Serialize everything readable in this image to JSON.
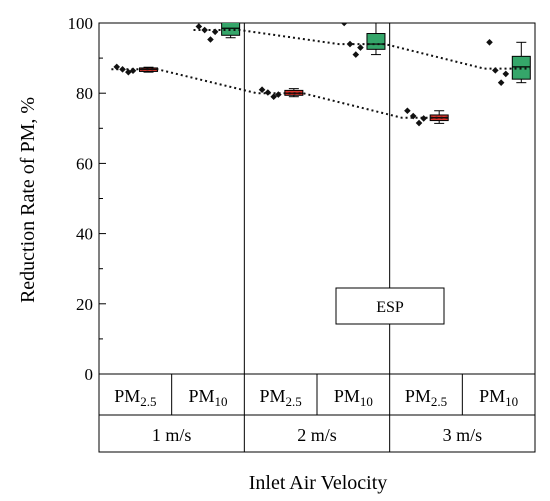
{
  "chart_data": {
    "type": "box",
    "ylabel": "Reduction Rate of PM, %",
    "xlabel": "Inlet Air Velocity",
    "ylim": [
      0,
      100
    ],
    "yticks": [
      0,
      20,
      40,
      60,
      80,
      100
    ],
    "groups": [
      {
        "velocity": "1 m/s",
        "pm": [
          "PM2.5",
          "PM10"
        ]
      },
      {
        "velocity": "2 m/s",
        "pm": [
          "PM2.5",
          "PM10"
        ]
      },
      {
        "velocity": "3 m/s",
        "pm": [
          "PM2.5",
          "PM10"
        ]
      }
    ],
    "pm_labels": [
      {
        "base": "PM",
        "sub": "2.5"
      },
      {
        "base": "PM",
        "sub": "10"
      }
    ],
    "legend_label": "ESP",
    "series": [
      {
        "pollutant": "PM2.5",
        "color": "#d9342b",
        "boxes": [
          {
            "velocity": "1 m/s",
            "q1": 86.2,
            "median": 86.8,
            "q3": 87.2,
            "whisker_low": 86.0,
            "whisker_high": 87.4,
            "points": [
              87.5,
              86.8,
              86.0,
              86.4
            ],
            "mean": 86.8
          },
          {
            "velocity": "2 m/s",
            "q1": 79.4,
            "median": 80.0,
            "q3": 80.8,
            "whisker_low": 79.0,
            "whisker_high": 81.3,
            "points": [
              81.0,
              80.2,
              79.0,
              79.6
            ],
            "mean": 80.0
          },
          {
            "velocity": "3 m/s",
            "q1": 72.2,
            "median": 73.0,
            "q3": 73.8,
            "whisker_low": 71.4,
            "whisker_high": 75.0,
            "points": [
              75.0,
              73.5,
              71.5,
              72.8
            ],
            "mean": 73.0
          }
        ]
      },
      {
        "pollutant": "PM10",
        "color": "#35a66a",
        "boxes": [
          {
            "velocity": "1 m/s",
            "q1": 96.5,
            "median": 98.5,
            "q3": 101.0,
            "whisker_low": 95.8,
            "whisker_high": 101.0,
            "points": [
              99.0,
              98.0,
              95.3,
              97.5
            ],
            "mean": 98.0
          },
          {
            "velocity": "2 m/s",
            "q1": 92.5,
            "median": 94.0,
            "q3": 97.0,
            "whisker_low": 91.0,
            "whisker_high": 101.0,
            "points": [
              100.0,
              94.0,
              91.0,
              93.0
            ],
            "mean": 94.0
          },
          {
            "velocity": "3 m/s",
            "q1": 84.0,
            "median": 87.5,
            "q3": 90.5,
            "whisker_low": 83.0,
            "whisker_high": 94.5,
            "points": [
              94.5,
              86.5,
              83.0,
              85.5
            ],
            "mean": 87.0
          }
        ]
      }
    ],
    "trend_lines": [
      {
        "series": "PM2.5",
        "style": "dotted"
      },
      {
        "series": "PM10",
        "style": "dotted"
      }
    ]
  }
}
